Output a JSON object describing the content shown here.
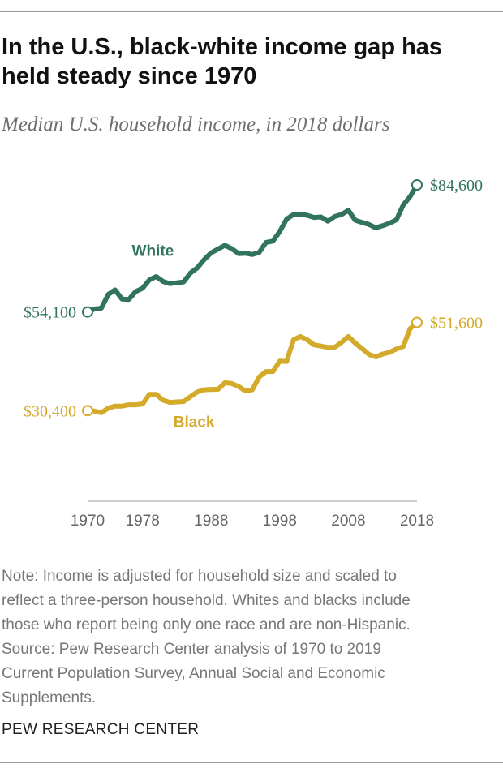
{
  "title": "In the U.S., black-white income gap has held steady since 1970",
  "subtitle": "Median U.S. household income, in 2018 dollars",
  "colors": {
    "white": "#31735f",
    "black": "#d4aa2a",
    "axis": "#bdbdbd",
    "tick_text": "#666666"
  },
  "chart_data": {
    "type": "line",
    "title": "In the U.S., black-white income gap has held steady since 1970",
    "subtitle": "Median U.S. household income, in 2018 dollars",
    "xlabel": "",
    "ylabel": "",
    "x_ticks": [
      1970,
      1978,
      1988,
      1998,
      2008,
      2018
    ],
    "x_range": [
      1970,
      2018
    ],
    "ylim": [
      18000,
      92000
    ],
    "grid": false,
    "legend": "direct labels on lines",
    "x": [
      1970,
      1971,
      1972,
      1973,
      1974,
      1975,
      1976,
      1977,
      1978,
      1979,
      1980,
      1981,
      1982,
      1983,
      1984,
      1985,
      1986,
      1987,
      1988,
      1989,
      1990,
      1991,
      1992,
      1993,
      1994,
      1995,
      1996,
      1997,
      1998,
      1999,
      2000,
      2001,
      2002,
      2003,
      2004,
      2005,
      2006,
      2007,
      2008,
      2009,
      2010,
      2011,
      2012,
      2013,
      2014,
      2015,
      2016,
      2017,
      2018
    ],
    "series": [
      {
        "name": "White",
        "color": "#31735f",
        "values": [
          54100,
          54800,
          55000,
          58300,
          59400,
          57200,
          57100,
          59000,
          59800,
          61800,
          62600,
          61400,
          60900,
          61100,
          61300,
          63500,
          64700,
          66700,
          68300,
          69200,
          70100,
          69300,
          68100,
          68200,
          67900,
          68400,
          70800,
          71100,
          73400,
          76400,
          77500,
          77600,
          77300,
          76800,
          76900,
          75900,
          77000,
          77500,
          78500,
          76100,
          75600,
          75100,
          74300,
          74800,
          75400,
          76200,
          79800,
          81800,
          84600
        ]
      },
      {
        "name": "Black",
        "color": "#d4aa2a",
        "values": [
          30400,
          30300,
          29900,
          31000,
          31500,
          31500,
          31800,
          31800,
          32000,
          34300,
          34300,
          32900,
          32400,
          32500,
          32600,
          33800,
          34900,
          35400,
          35500,
          35500,
          37100,
          36900,
          36200,
          35100,
          35400,
          38500,
          39800,
          39800,
          42300,
          42200,
          47400,
          48200,
          47400,
          46200,
          45900,
          45600,
          45600,
          46800,
          48200,
          46600,
          45300,
          43900,
          43300,
          44000,
          44400,
          45200,
          45800,
          50100,
          51600
        ]
      }
    ],
    "annotations": {
      "series_labels": [
        "White",
        "Black"
      ],
      "value_labels": [
        {
          "series": "White",
          "x": 1970,
          "value": 54100,
          "text": "$54,100"
        },
        {
          "series": "White",
          "x": 2018,
          "value": 84600,
          "text": "$84,600"
        },
        {
          "series": "Black",
          "x": 1970,
          "value": 30400,
          "text": "$30,400"
        },
        {
          "series": "Black",
          "x": 2018,
          "value": 51600,
          "text": "$51,600"
        }
      ]
    }
  },
  "notes": [
    "Note: Income is adjusted for household size and scaled to",
    "reflect a three-person household. Whites and blacks include",
    "those who report being only one race and are non-Hispanic.",
    "Source: Pew Research Center analysis of 1970 to 2019",
    "Current Population Survey, Annual Social and Economic",
    "Supplements."
  ],
  "source": "PEW RESEARCH CENTER"
}
